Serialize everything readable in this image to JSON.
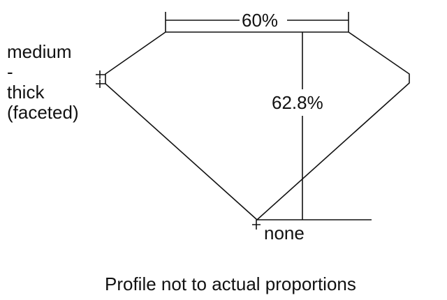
{
  "diagram": {
    "table_percent": "60%",
    "depth_percent": "62.8%",
    "girdle_label_lines": [
      "medium",
      "-",
      "thick",
      "(faceted)"
    ],
    "culet_label": "none",
    "caption": "Profile not to actual proportions",
    "line_color": "#111111"
  }
}
